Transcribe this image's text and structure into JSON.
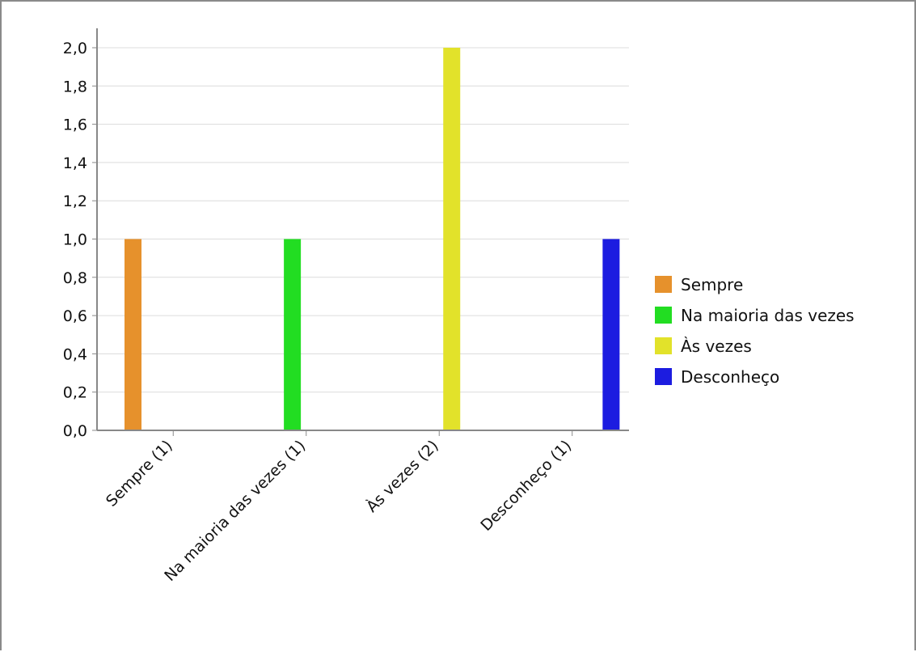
{
  "chart_data": {
    "type": "bar",
    "categories": [
      "Sempre (1)",
      "Na maioria das vezes (1)",
      "Às vezes (2)",
      "Desconheço (1)"
    ],
    "series": [
      {
        "name": "Sempre",
        "color": "#e6912c",
        "values": [
          1,
          0,
          0,
          0
        ]
      },
      {
        "name": "Na maioria das vezes",
        "color": "#22dd22",
        "values": [
          0,
          1,
          0,
          0
        ]
      },
      {
        "name": "Às vezes",
        "color": "#e2e22a",
        "values": [
          0,
          0,
          2,
          0
        ]
      },
      {
        "name": "Desconheço",
        "color": "#1c1ce0",
        "values": [
          0,
          0,
          0,
          1
        ]
      }
    ],
    "ylim": [
      0,
      2.0
    ],
    "yticks": [
      "0,0",
      "0,2",
      "0,4",
      "0,6",
      "0,8",
      "1,0",
      "1,2",
      "1,4",
      "1,6",
      "1,8",
      "2,0"
    ],
    "grid": true,
    "legend_position": "right",
    "title": "",
    "xlabel": "",
    "ylabel": ""
  }
}
